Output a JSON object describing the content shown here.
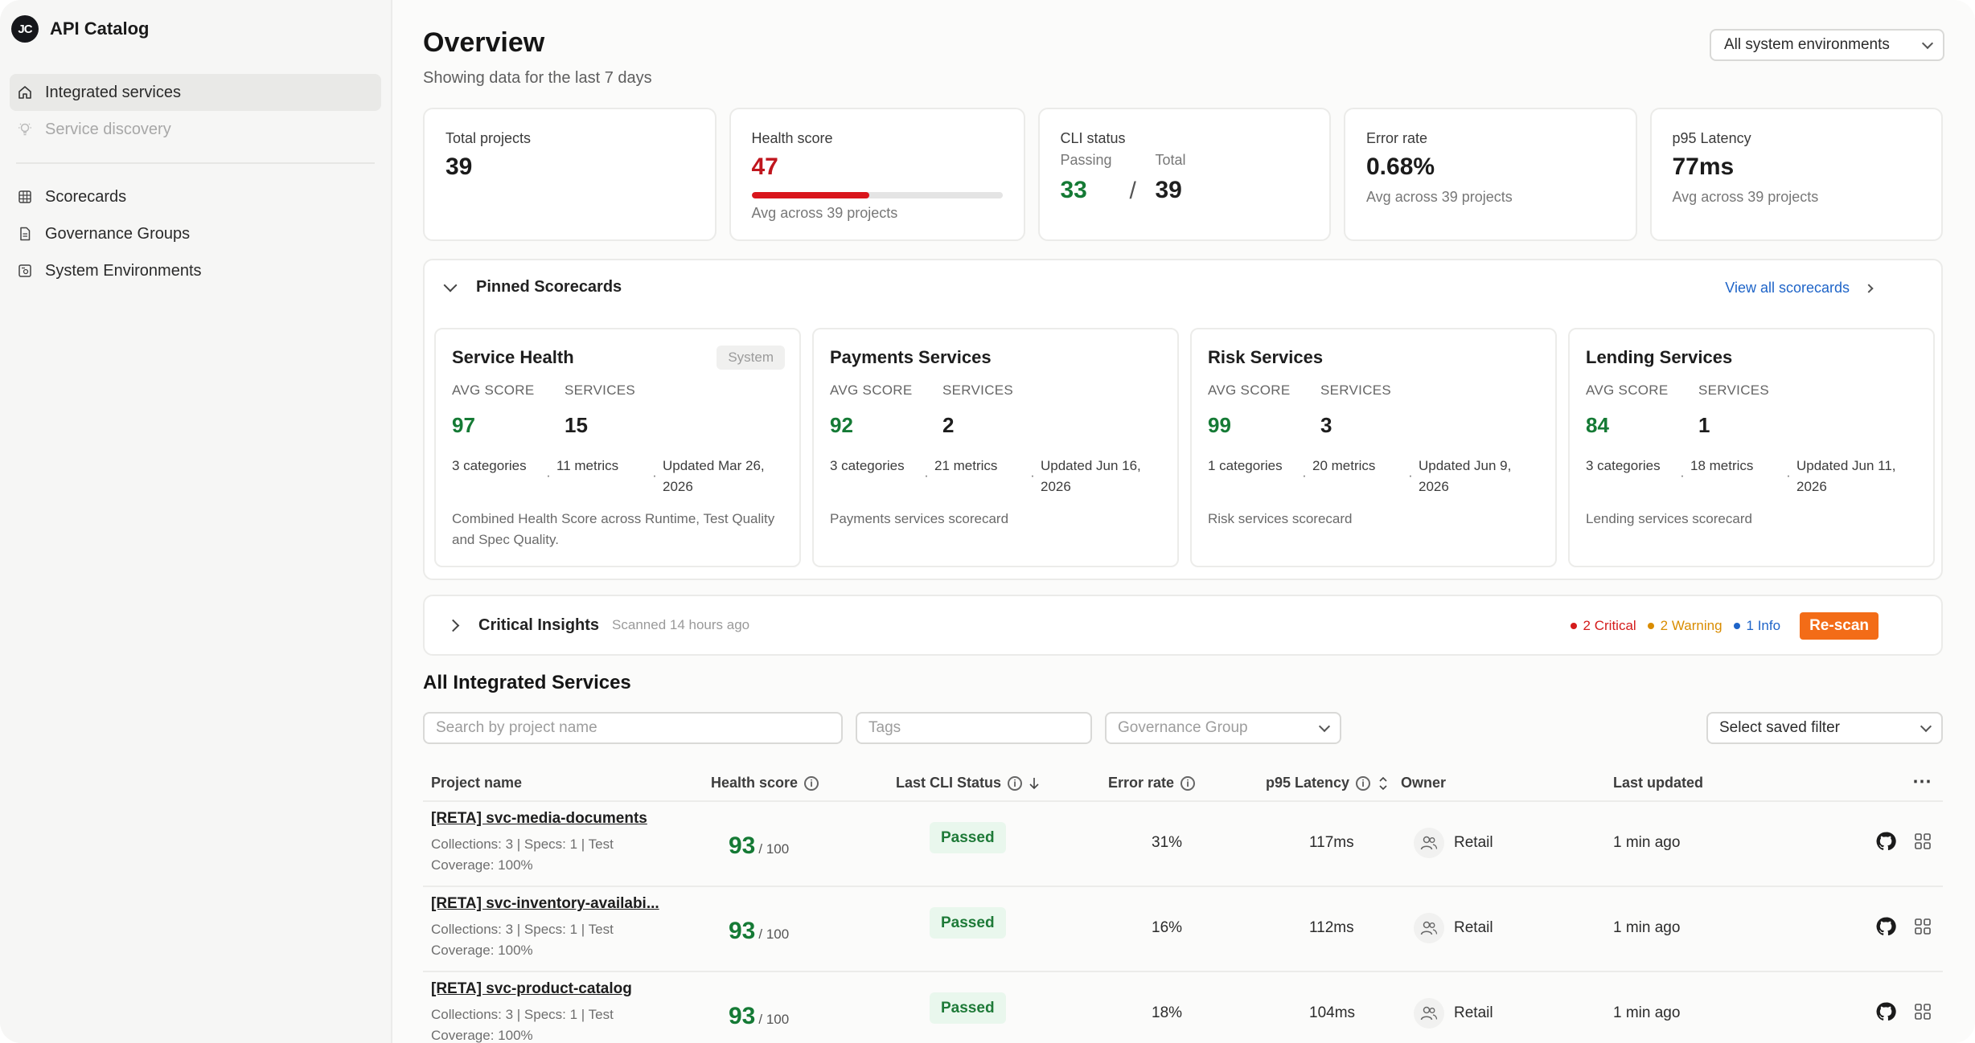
{
  "app": {
    "logo_text": "JC",
    "name": "API Catalog"
  },
  "sidebar": {
    "items": [
      {
        "label": "Integrated services",
        "icon": "home-icon",
        "state": "active"
      },
      {
        "label": "Service discovery",
        "icon": "lightbulb-icon",
        "state": "muted"
      },
      {
        "label": "Scorecards",
        "icon": "grid-icon",
        "state": "normal"
      },
      {
        "label": "Governance Groups",
        "icon": "document-icon",
        "state": "normal"
      },
      {
        "label": "System Environments",
        "icon": "environment-icon",
        "state": "normal"
      }
    ]
  },
  "header": {
    "title": "Overview",
    "subtitle": "Showing data for the last 7 days",
    "env_select": "All system environments"
  },
  "stats": {
    "total_projects": {
      "label": "Total projects",
      "value": "39"
    },
    "health_score": {
      "label": "Health score",
      "value": "47",
      "progress": 0.47,
      "sub": "Avg across 39 projects"
    },
    "cli_status": {
      "label": "CLI status",
      "passing_label": "Passing",
      "passing": "33",
      "slash": "/",
      "total_label": "Total",
      "total": "39"
    },
    "error_rate": {
      "label": "Error rate",
      "value": "0.68%",
      "sub": "Avg across 39 projects"
    },
    "p95_latency": {
      "label": "p95 Latency",
      "value": "77ms",
      "sub": "Avg across 39 projects"
    }
  },
  "pinned": {
    "title": "Pinned Scorecards",
    "view_all": "View all scorecards",
    "cards": [
      {
        "title": "Service Health",
        "badge": "System",
        "avg_label": "AVG SCORE",
        "avg": "97",
        "svc_label": "SERVICES",
        "services": "15",
        "categories": "3 categories",
        "metrics": "11 metrics",
        "updated": "Updated Mar 26, 2026",
        "desc": "Combined Health Score across Runtime, Test Quality and Spec Quality."
      },
      {
        "title": "Payments Services",
        "badge": "",
        "avg_label": "AVG SCORE",
        "avg": "92",
        "svc_label": "SERVICES",
        "services": "2",
        "categories": "3 categories",
        "metrics": "21 metrics",
        "updated": "Updated Jun 16, 2026",
        "desc": "Payments services scorecard"
      },
      {
        "title": "Risk Services",
        "badge": "",
        "avg_label": "AVG SCORE",
        "avg": "99",
        "svc_label": "SERVICES",
        "services": "3",
        "categories": "1 categories",
        "metrics": "20 metrics",
        "updated": "Updated Jun 9, 2026",
        "desc": "Risk services scorecard"
      },
      {
        "title": "Lending Services",
        "badge": "",
        "avg_label": "AVG SCORE",
        "avg": "84",
        "svc_label": "SERVICES",
        "services": "1",
        "categories": "3 categories",
        "metrics": "18 metrics",
        "updated": "Updated Jun 11, 2026",
        "desc": "Lending services scorecard"
      }
    ]
  },
  "insights": {
    "title": "Critical Insights",
    "scanned": "Scanned 14 hours ago",
    "critical": "2 Critical",
    "warning": "2 Warning",
    "info": "1 Info",
    "rescan": "Re-scan",
    "colors": {
      "critical": "#d41b1b",
      "warning": "#d98c00",
      "info": "#1e64c8"
    }
  },
  "services": {
    "title": "All Integrated Services",
    "search_placeholder": "Search by project name",
    "tags_placeholder": "Tags",
    "group_placeholder": "Governance Group",
    "saved_filter": "Select saved filter",
    "columns": {
      "name": "Project name",
      "health": "Health score",
      "cli": "Last CLI Status",
      "error": "Error rate",
      "latency": "p95 Latency",
      "owner": "Owner",
      "updated": "Last updated",
      "more": "⋯"
    },
    "rows": [
      {
        "name": "[RETA] svc-media-documents",
        "meta1": "Collections: 3 | Specs: 1 | Test",
        "meta2": "Coverage: 100%",
        "score": "93",
        "max": "/ 100",
        "cli": "Passed",
        "error": "31%",
        "latency": "117ms",
        "owner": "Retail",
        "updated": "1 min ago"
      },
      {
        "name": "[RETA] svc-inventory-availabi...",
        "meta1": "Collections: 3 | Specs: 1 | Test",
        "meta2": "Coverage: 100%",
        "score": "93",
        "max": "/ 100",
        "cli": "Passed",
        "error": "16%",
        "latency": "112ms",
        "owner": "Retail",
        "updated": "1 min ago"
      },
      {
        "name": "[RETA] svc-product-catalog",
        "meta1": "Collections: 3 | Specs: 1 | Test",
        "meta2": "Coverage: 100%",
        "score": "93",
        "max": "/ 100",
        "cli": "Passed",
        "error": "18%",
        "latency": "104ms",
        "owner": "Retail",
        "updated": "1 min ago"
      }
    ]
  }
}
